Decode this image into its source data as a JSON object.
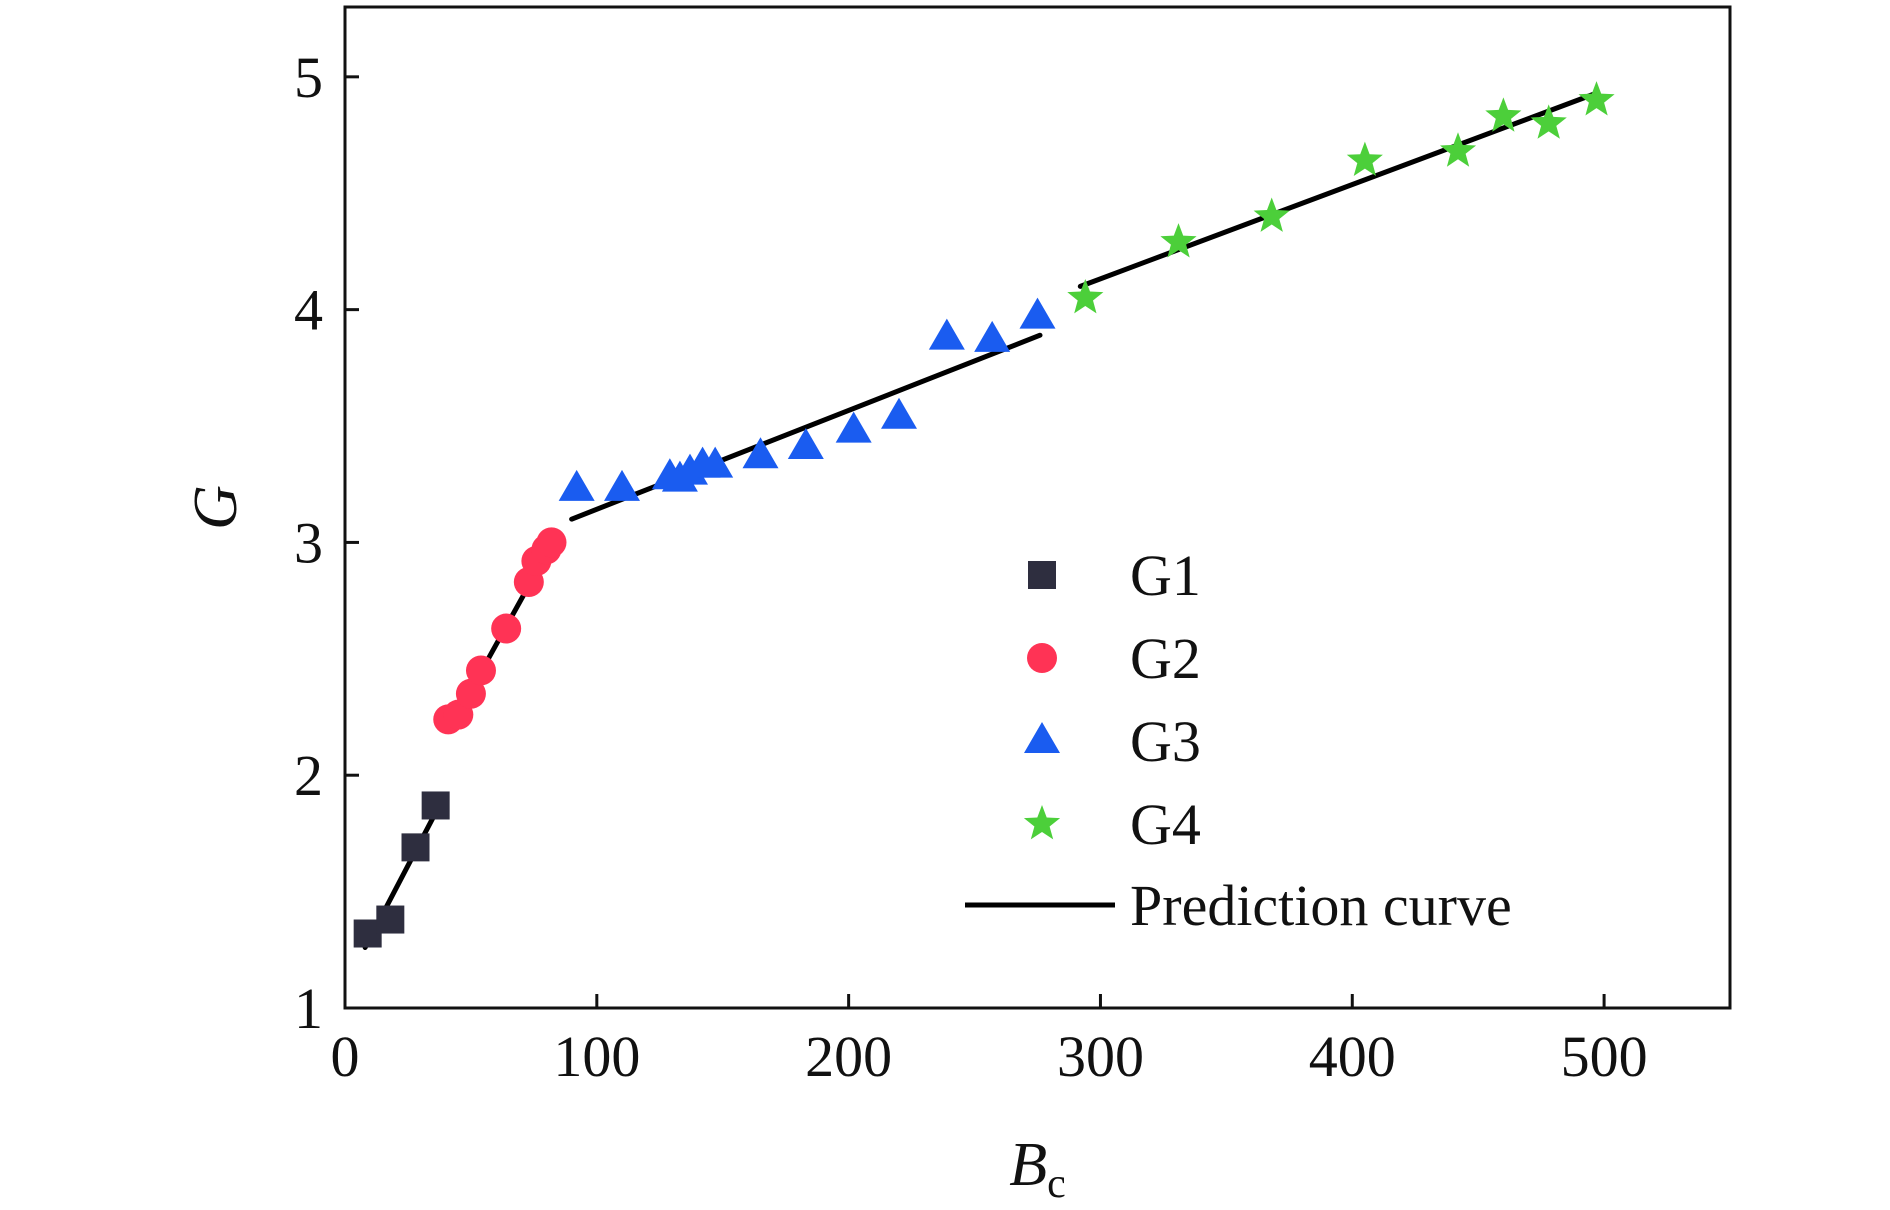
{
  "chart_data": {
    "type": "scatter",
    "xlabel": "B",
    "xlabel_sub": "c",
    "ylabel": "G",
    "xlim": [
      0,
      550
    ],
    "ylim": [
      1,
      5.3
    ],
    "xticks": [
      0,
      100,
      200,
      300,
      400,
      500
    ],
    "yticks": [
      1,
      2,
      3,
      4,
      5
    ],
    "grid": false,
    "legend_position": "center-right",
    "series": [
      {
        "name": "G1",
        "marker": "square",
        "color": "#2e2e3f",
        "points": [
          [
            9,
            1.32
          ],
          [
            18,
            1.38
          ],
          [
            28,
            1.69
          ],
          [
            36,
            1.87
          ]
        ]
      },
      {
        "name": "G2",
        "marker": "circle",
        "color": "#ff3355",
        "points": [
          [
            41,
            2.24
          ],
          [
            45,
            2.26
          ],
          [
            50,
            2.35
          ],
          [
            54,
            2.45
          ],
          [
            64,
            2.63
          ],
          [
            73,
            2.83
          ],
          [
            76,
            2.92
          ],
          [
            80,
            2.97
          ],
          [
            82,
            3.0
          ]
        ]
      },
      {
        "name": "G3",
        "marker": "triangle",
        "color": "#1a5cf0",
        "points": [
          [
            92,
            3.23
          ],
          [
            110,
            3.23
          ],
          [
            129,
            3.28
          ],
          [
            133,
            3.27
          ],
          [
            137,
            3.3
          ],
          [
            142,
            3.33
          ],
          [
            147,
            3.33
          ],
          [
            165,
            3.37
          ],
          [
            183,
            3.41
          ],
          [
            202,
            3.48
          ],
          [
            220,
            3.54
          ],
          [
            239,
            3.88
          ],
          [
            257,
            3.87
          ],
          [
            275,
            3.97
          ]
        ]
      },
      {
        "name": "G4",
        "marker": "star",
        "color": "#4ccf3a",
        "points": [
          [
            294,
            4.05
          ],
          [
            331,
            4.29
          ],
          [
            368,
            4.4
          ],
          [
            405,
            4.64
          ],
          [
            442,
            4.68
          ],
          [
            460,
            4.83
          ],
          [
            478,
            4.8
          ],
          [
            497,
            4.9
          ]
        ]
      }
    ],
    "prediction_curve": {
      "name": "Prediction curve",
      "color": "#000000",
      "segments": [
        [
          [
            8,
            1.26
          ],
          [
            37,
            1.86
          ]
        ],
        [
          [
            41,
            2.19
          ],
          [
            82,
            2.99
          ]
        ],
        [
          [
            90,
            3.1
          ],
          [
            276,
            3.89
          ]
        ],
        [
          [
            292,
            4.1
          ],
          [
            497,
            4.93
          ]
        ]
      ]
    }
  }
}
